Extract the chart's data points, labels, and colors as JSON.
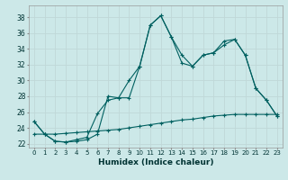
{
  "xlabel": "Humidex (Indice chaleur)",
  "ylabel": "",
  "bg_color": "#cce8e8",
  "grid_color": "#c0d8d8",
  "line_color": "#006060",
  "xlim": [
    -0.5,
    23.5
  ],
  "ylim": [
    21.5,
    39.5
  ],
  "xticks": [
    0,
    1,
    2,
    3,
    4,
    5,
    6,
    7,
    8,
    9,
    10,
    11,
    12,
    13,
    14,
    15,
    16,
    17,
    18,
    19,
    20,
    21,
    22,
    23
  ],
  "yticks": [
    22,
    24,
    26,
    28,
    30,
    32,
    34,
    36,
    38
  ],
  "series1_x": [
    0,
    1,
    2,
    3,
    4,
    5,
    6,
    7,
    8,
    9,
    10,
    11,
    12,
    13,
    14,
    15,
    16,
    17,
    18,
    19,
    20,
    21,
    22,
    23
  ],
  "series1_y": [
    24.8,
    23.2,
    22.3,
    22.2,
    22.3,
    22.5,
    23.2,
    28.0,
    27.8,
    30.0,
    31.8,
    37.0,
    38.2,
    35.5,
    32.2,
    31.8,
    33.2,
    33.5,
    35.0,
    35.2,
    33.2,
    29.0,
    27.5,
    25.5
  ],
  "series2_x": [
    0,
    1,
    2,
    3,
    4,
    5,
    6,
    7,
    8,
    9,
    10,
    11,
    12,
    13,
    14,
    15,
    16,
    17,
    18,
    19,
    20,
    21,
    22,
    23
  ],
  "series2_y": [
    24.8,
    23.2,
    22.3,
    22.2,
    22.5,
    22.8,
    25.8,
    27.5,
    27.8,
    27.8,
    31.8,
    37.0,
    38.2,
    35.5,
    33.2,
    31.8,
    33.2,
    33.5,
    34.5,
    35.2,
    33.2,
    29.0,
    27.5,
    25.5
  ],
  "series3_x": [
    0,
    1,
    2,
    3,
    4,
    5,
    6,
    7,
    8,
    9,
    10,
    11,
    12,
    13,
    14,
    15,
    16,
    17,
    18,
    19,
    20,
    21,
    22,
    23
  ],
  "series3_y": [
    23.2,
    23.2,
    23.2,
    23.3,
    23.4,
    23.5,
    23.6,
    23.7,
    23.8,
    24.0,
    24.2,
    24.4,
    24.6,
    24.8,
    25.0,
    25.1,
    25.3,
    25.5,
    25.6,
    25.7,
    25.7,
    25.7,
    25.7,
    25.7
  ]
}
